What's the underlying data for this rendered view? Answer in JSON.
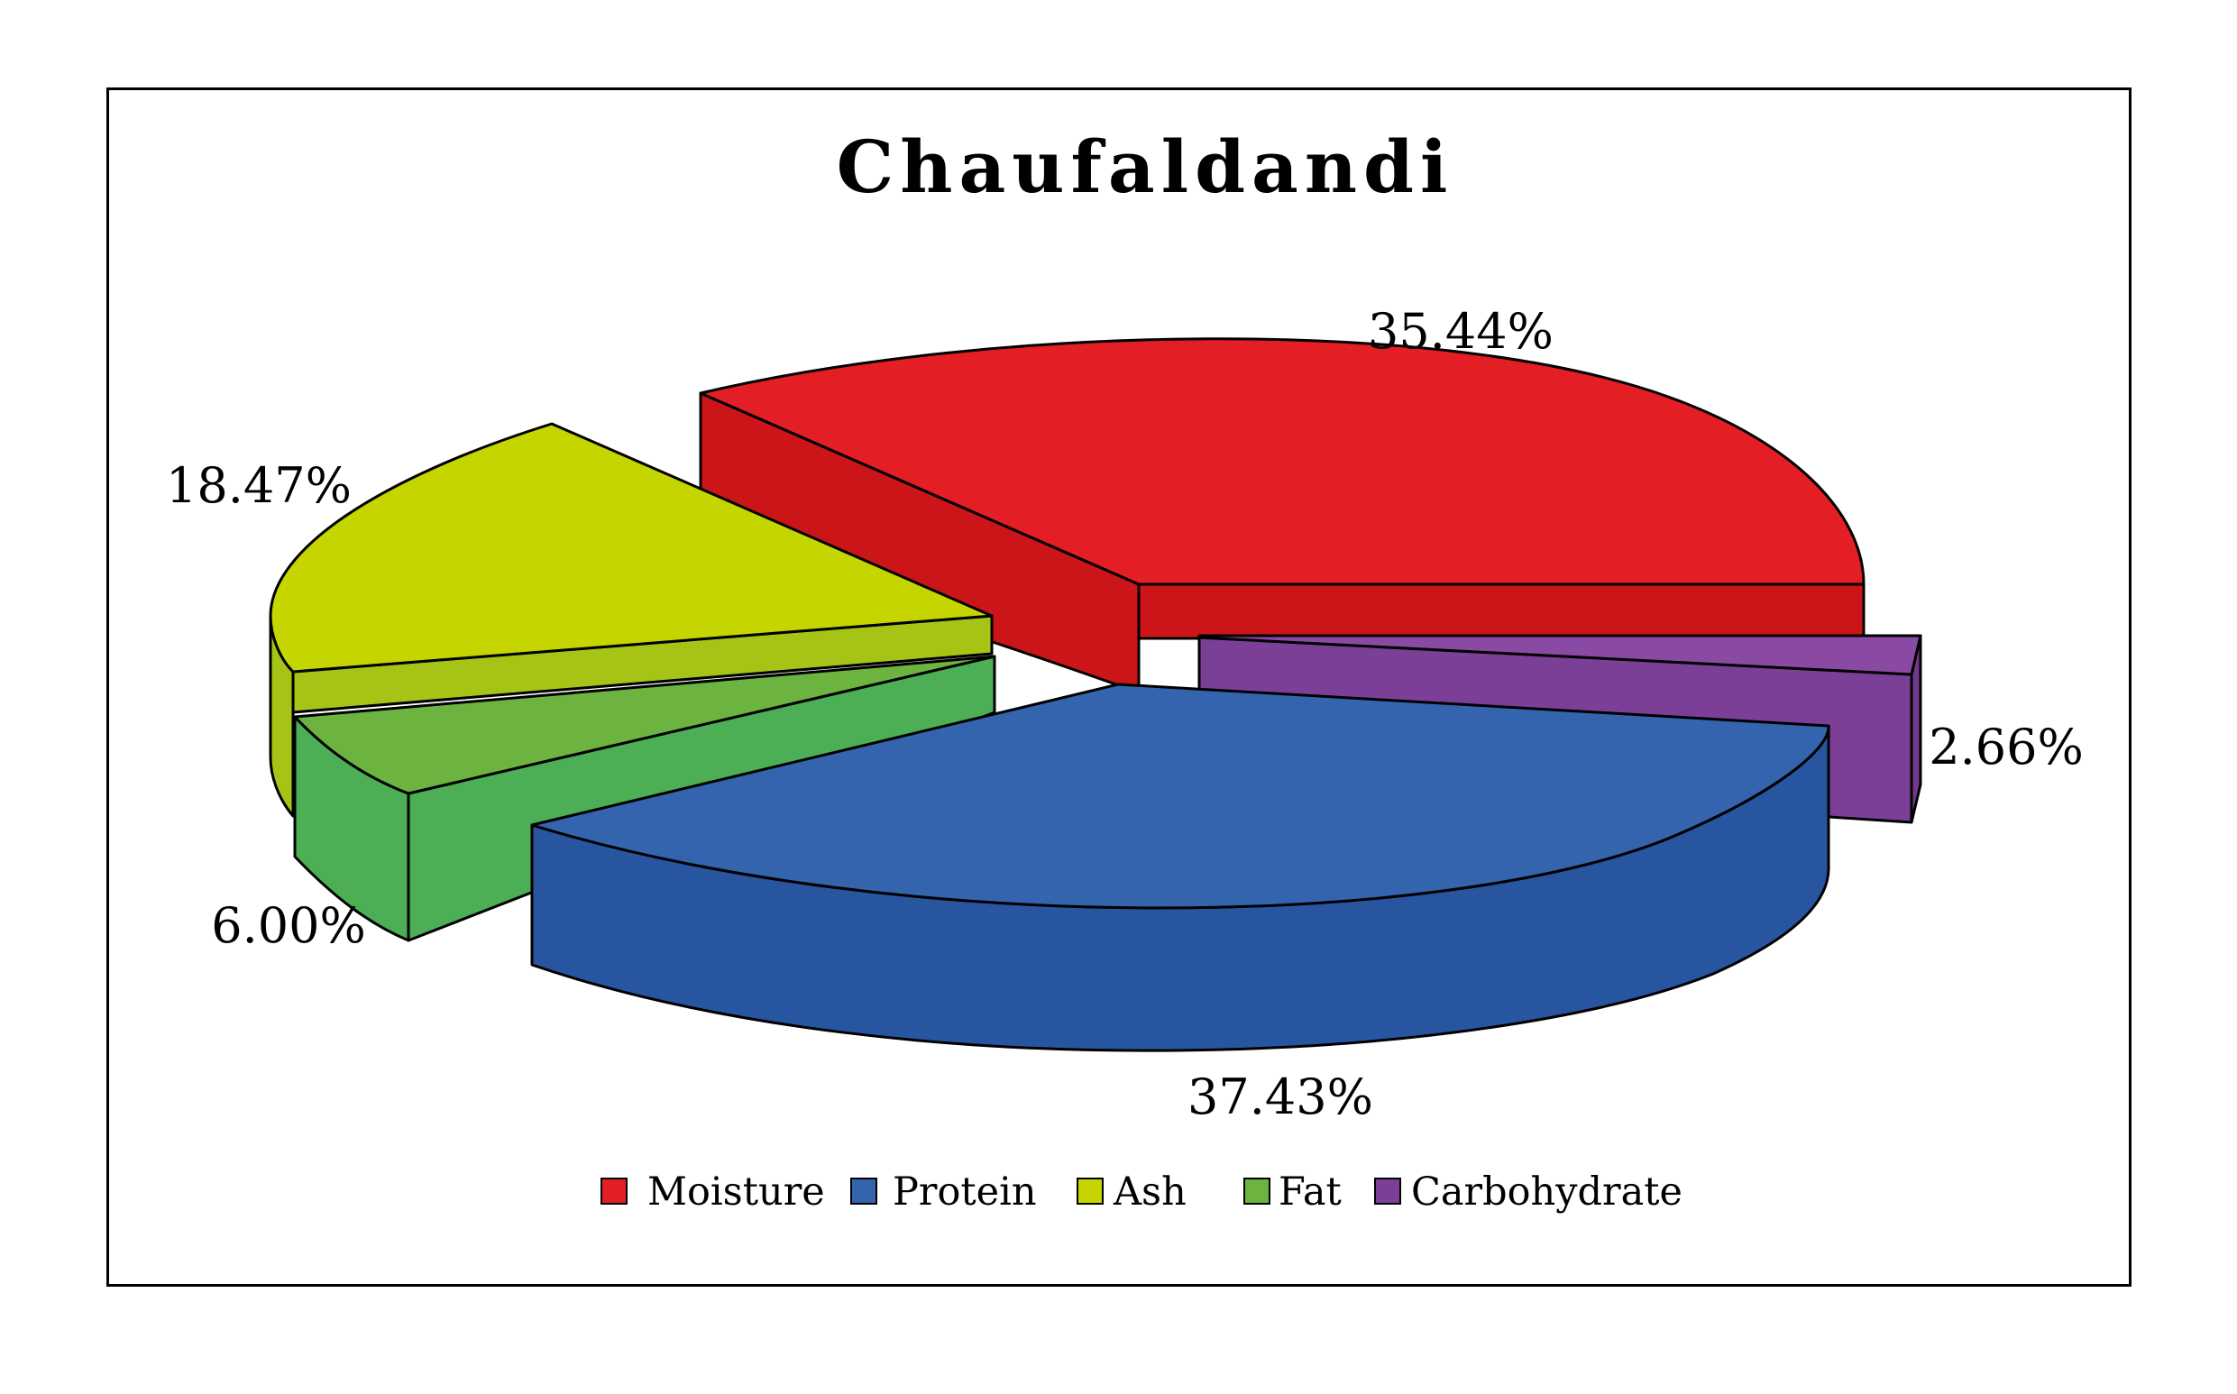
{
  "chart_data": {
    "type": "pie",
    "title": "Chaufaldandi",
    "categories": [
      "Moisture",
      "Protein",
      "Ash",
      "Fat",
      "Carbohydrate"
    ],
    "values": [
      35.44,
      37.43,
      18.47,
      6.0,
      2.66
    ],
    "labels": [
      "35.44%",
      "37.43%",
      "18.47%",
      "6.00%",
      "2.66%"
    ],
    "colors": [
      "#e31e24",
      "#3464ad",
      "#c5d500",
      "#6cb33f",
      "#7b3f98"
    ],
    "style": "3d-exploded",
    "legend_position": "bottom"
  }
}
